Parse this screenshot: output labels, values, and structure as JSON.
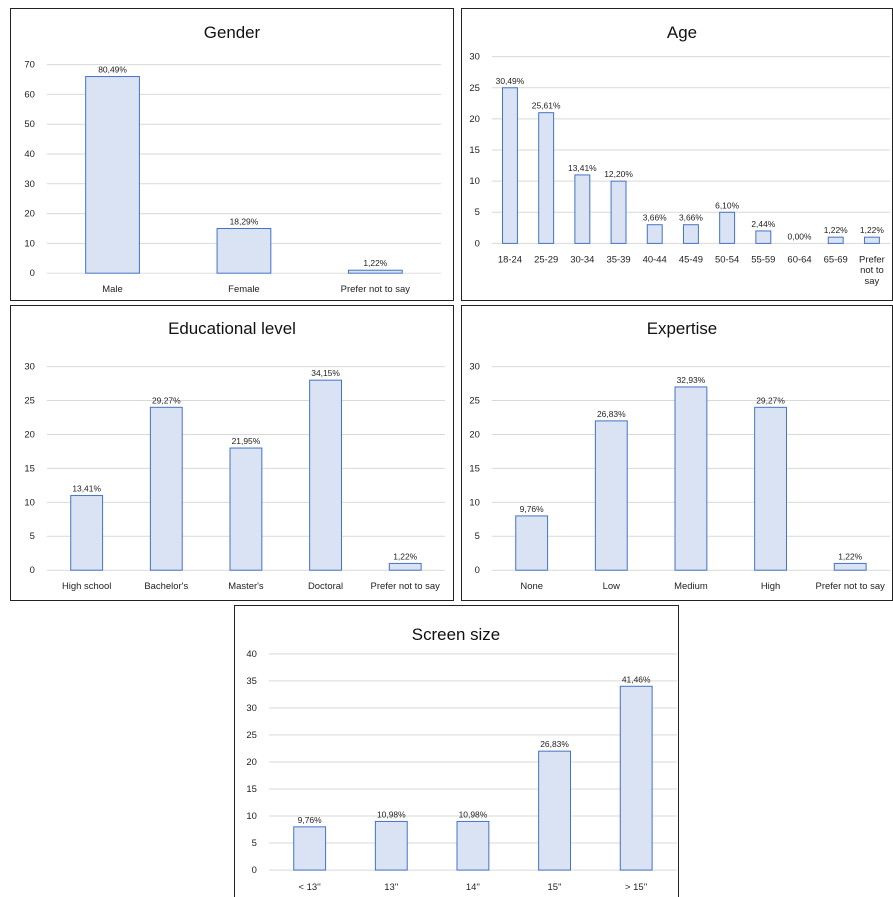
{
  "chart_data": [
    {
      "id": "gender",
      "type": "bar",
      "title": "Gender",
      "categories": [
        "Male",
        "Female",
        "Prefer not to say"
      ],
      "values": [
        66,
        15,
        1
      ],
      "data_labels": [
        "80,49%",
        "18,29%",
        "1,22%"
      ],
      "ylim": [
        0,
        70
      ],
      "yticks": [
        0,
        10,
        20,
        30,
        40,
        50,
        60,
        70
      ],
      "grid": true,
      "bar_color": "#dae3f3",
      "bar_edge_color": "#4472c4"
    },
    {
      "id": "age",
      "type": "bar",
      "title": "Age",
      "categories": [
        "18-24",
        "25-29",
        "30-34",
        "35-39",
        "40-44",
        "45-49",
        "50-54",
        "55-59",
        "60-64",
        "65-69",
        "Prefer not to say"
      ],
      "values": [
        25,
        21,
        11,
        10,
        3,
        3,
        5,
        2,
        0,
        1,
        1
      ],
      "data_labels": [
        "30,49%",
        "25,61%",
        "13,41%",
        "12,20%",
        "3,66%",
        "3,66%",
        "6,10%",
        "2,44%",
        "0,00%",
        "1,22%",
        "1,22%"
      ],
      "ylim": [
        0,
        30
      ],
      "yticks": [
        0,
        5,
        10,
        15,
        20,
        25,
        30
      ],
      "grid": true,
      "bar_color": "#dae3f3",
      "bar_edge_color": "#4472c4"
    },
    {
      "id": "education",
      "type": "bar",
      "title": "Educational level",
      "categories": [
        "High school",
        "Bachelor's",
        "Master's",
        "Doctoral",
        "Prefer not to say"
      ],
      "values": [
        11,
        24,
        18,
        28,
        1
      ],
      "data_labels": [
        "13,41%",
        "29,27%",
        "21,95%",
        "34,15%",
        "1,22%"
      ],
      "ylim": [
        0,
        30
      ],
      "yticks": [
        0,
        5,
        10,
        15,
        20,
        25,
        30
      ],
      "grid": true,
      "bar_color": "#dae3f3",
      "bar_edge_color": "#4472c4"
    },
    {
      "id": "expertise",
      "type": "bar",
      "title": "Expertise",
      "categories": [
        "None",
        "Low",
        "Medium",
        "High",
        "Prefer not to say"
      ],
      "values": [
        8,
        22,
        27,
        24,
        1
      ],
      "data_labels": [
        "9,76%",
        "26,83%",
        "32,93%",
        "29,27%",
        "1,22%"
      ],
      "ylim": [
        0,
        30
      ],
      "yticks": [
        0,
        5,
        10,
        15,
        20,
        25,
        30
      ],
      "grid": true,
      "bar_color": "#dae3f3",
      "bar_edge_color": "#4472c4"
    },
    {
      "id": "screen",
      "type": "bar",
      "title": "Screen size",
      "categories": [
        "< 13''",
        "13''",
        "14''",
        "15''",
        "> 15''"
      ],
      "values": [
        8,
        9,
        9,
        22,
        34
      ],
      "data_labels": [
        "9,76%",
        "10,98%",
        "10,98%",
        "26,83%",
        "41,46%"
      ],
      "ylim": [
        0,
        40
      ],
      "yticks": [
        0,
        5,
        10,
        15,
        20,
        25,
        30,
        35,
        40
      ],
      "grid": true,
      "bar_color": "#dae3f3",
      "bar_edge_color": "#4472c4"
    }
  ]
}
